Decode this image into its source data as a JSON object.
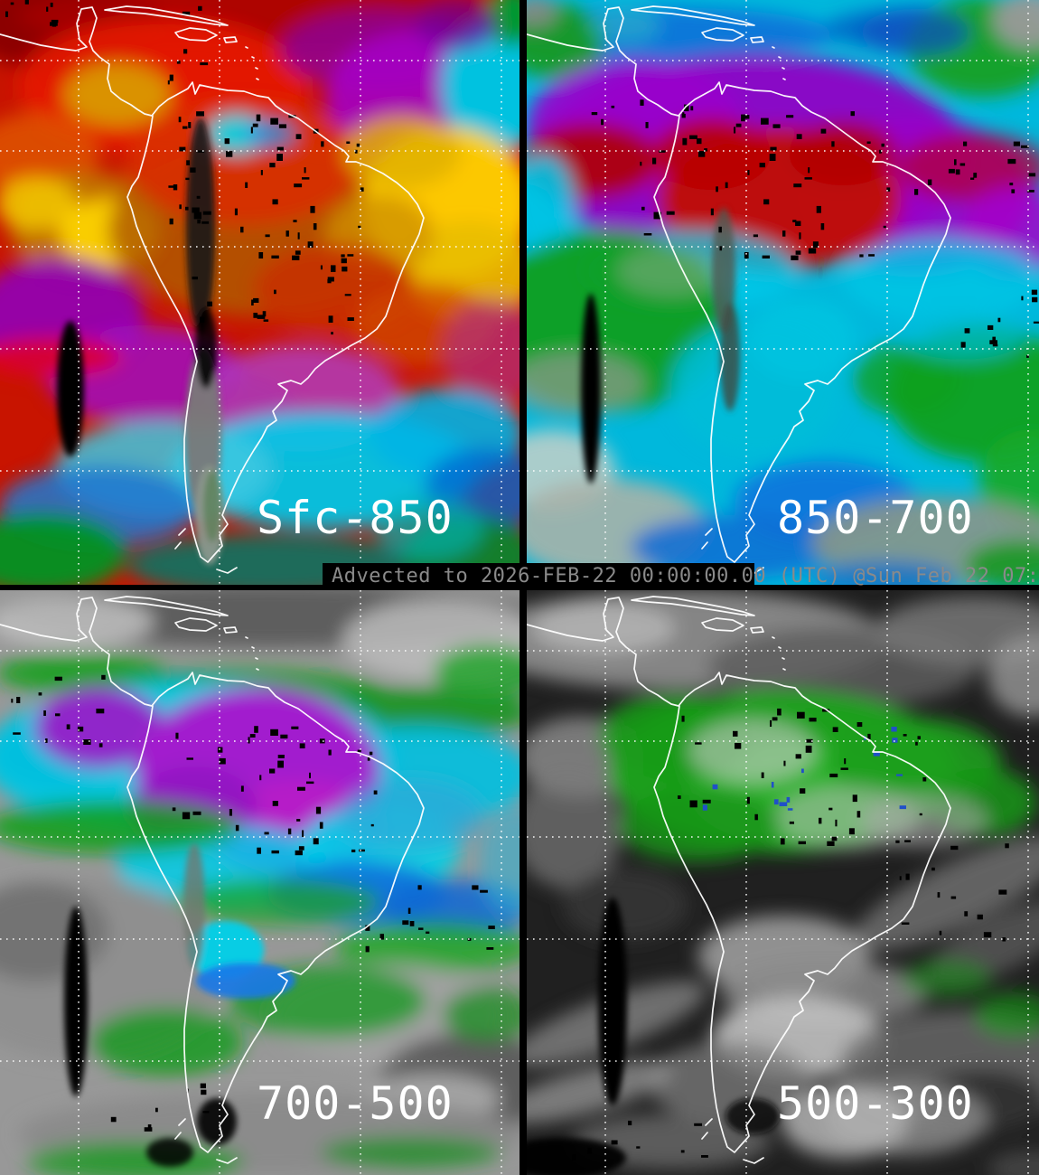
{
  "banner": {
    "text": "Advected to 2026-FEB-22 00:00:00.00 (UTC) @Sun Feb 22 07:0"
  },
  "panels": [
    {
      "label": "Sfc-850"
    },
    {
      "label": "850-700"
    },
    {
      "label": "700-500"
    },
    {
      "label": "500-300"
    }
  ],
  "colors": {
    "background": "#000000",
    "coastline": "#ffffff",
    "graticule": "#ffffff",
    "label_text": "#ffffff",
    "banner_text": "#8a8a8a",
    "banner_background": "#000000",
    "moisture_scale_low_to_high": [
      "#1f1f1f",
      "#999999",
      "#12a01c",
      "#00c8e4",
      "#0b6fe0",
      "#9900cc",
      "#bb0500",
      "#e06000",
      "#ffd800"
    ]
  }
}
